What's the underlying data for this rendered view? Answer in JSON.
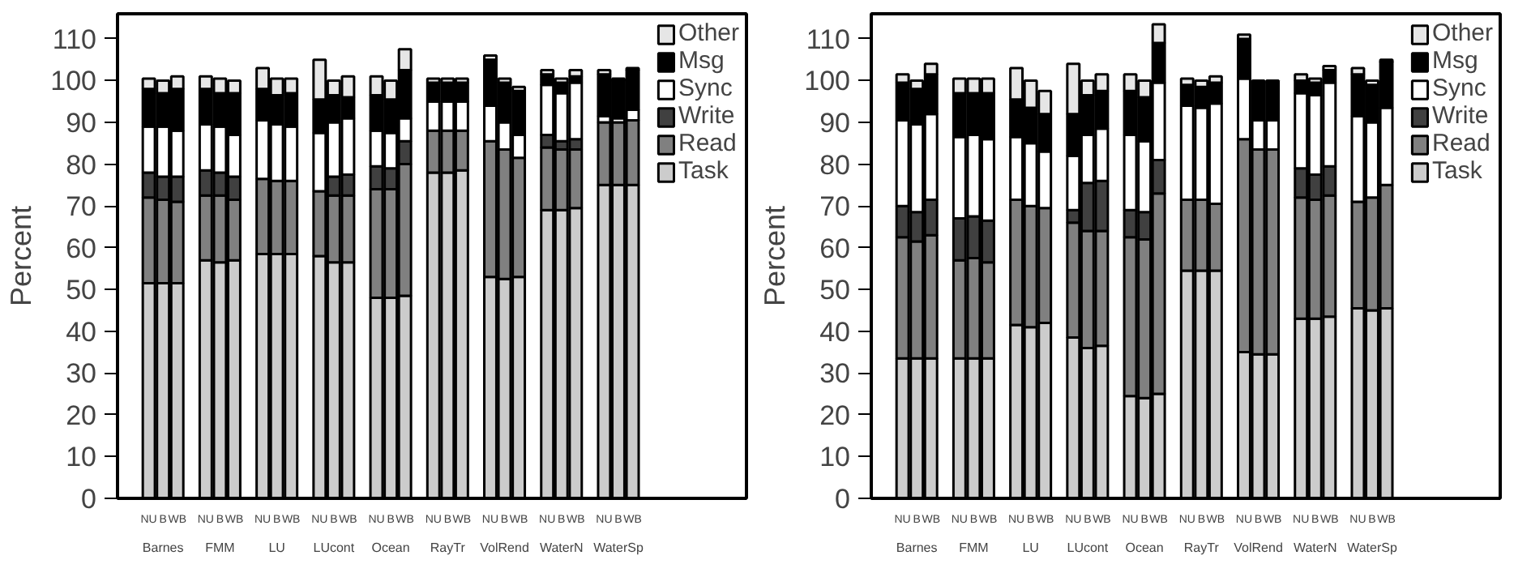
{
  "chart_data": [
    {
      "type": "bar",
      "stacked": true,
      "ylabel": "Percent",
      "ylim": [
        0,
        116
      ],
      "yticks": [
        0,
        10,
        20,
        30,
        40,
        50,
        60,
        70,
        80,
        90,
        100,
        110
      ],
      "grid": false,
      "legend": "top right",
      "categories": [
        "NU",
        "B",
        "WB",
        "NU",
        "B",
        "WB",
        "NU",
        "B",
        "WB",
        "NU",
        "B",
        "WB",
        "NU",
        "B",
        "WB",
        "NU",
        "B",
        "WB",
        "NU",
        "B",
        "WB",
        "NU",
        "B",
        "WB",
        "NU",
        "B",
        "WB"
      ],
      "annotations": [
        "Barnes",
        "FMM",
        "LU",
        "LUcont",
        "Ocean",
        "RayTr",
        "VolRend",
        "WaterN",
        "WaterSp"
      ],
      "series": [
        {
          "name": "Task",
          "color": "#cccccc",
          "values": [
            51.5,
            51.5,
            51.5,
            57,
            56.5,
            57,
            58.5,
            58.5,
            58.5,
            58,
            56.5,
            56.5,
            48,
            48,
            48.5,
            78,
            78,
            78.5,
            53,
            52.5,
            53,
            69,
            69,
            69.5,
            75,
            75,
            75
          ]
        },
        {
          "name": "Read",
          "color": "#808080",
          "values": [
            20.5,
            20,
            19.5,
            15.5,
            16,
            14.5,
            18,
            17.5,
            17.5,
            15.5,
            16,
            16,
            26,
            26,
            31.5,
            10,
            10,
            9.5,
            32.5,
            31,
            28.5,
            15,
            14.5,
            14,
            15,
            15,
            15.5
          ]
        },
        {
          "name": "Write",
          "color": "#404040",
          "values": [
            6,
            5.5,
            6,
            6,
            5.5,
            5.5,
            0,
            0,
            0,
            0,
            4.5,
            5,
            5.5,
            5,
            5.5,
            0,
            0,
            0,
            0,
            0,
            0,
            3,
            2,
            2.5,
            0,
            0,
            0
          ]
        },
        {
          "name": "Sync",
          "color": "#ffffff",
          "values": [
            11,
            12,
            11,
            11,
            11,
            10,
            14,
            13.5,
            13,
            14,
            13,
            13.5,
            8.5,
            8.5,
            5.5,
            7,
            7,
            7,
            8.5,
            6.5,
            5.5,
            12,
            11.5,
            13.5,
            1.5,
            1,
            2.5
          ]
        },
        {
          "name": "Msg",
          "color": "#000000",
          "values": [
            9,
            8,
            10,
            8.5,
            8,
            10,
            7.5,
            7,
            8,
            8,
            6.5,
            5,
            8.5,
            8,
            11.5,
            4.5,
            4.5,
            4.5,
            11,
            9.5,
            10.5,
            2.5,
            2.5,
            1.5,
            10,
            9,
            9.5
          ]
        },
        {
          "name": "Other",
          "color": "#e6e6e6",
          "values": [
            2.5,
            3,
            3,
            3,
            3.5,
            3,
            5,
            4,
            3.5,
            9.5,
            3.5,
            5,
            4.5,
            4.5,
            5,
            1,
            1,
            1,
            1,
            1,
            1,
            1,
            1,
            1.5,
            1,
            0.5,
            0.5
          ]
        }
      ]
    },
    {
      "type": "bar",
      "stacked": true,
      "ylabel": "Percent",
      "ylim": [
        0,
        116
      ],
      "yticks": [
        0,
        10,
        20,
        30,
        40,
        50,
        60,
        70,
        80,
        90,
        100,
        110
      ],
      "grid": false,
      "legend": "top right",
      "categories": [
        "NU",
        "B",
        "WB",
        "NU",
        "B",
        "WB",
        "NU",
        "B",
        "WB",
        "NU",
        "B",
        "WB",
        "NU",
        "B",
        "WB",
        "NU",
        "B",
        "WB",
        "NU",
        "B",
        "WB",
        "NU",
        "B",
        "WB",
        "NU",
        "B",
        "WB"
      ],
      "annotations": [
        "Barnes",
        "FMM",
        "LU",
        "LUcont",
        "Ocean",
        "RayTr",
        "VolRend",
        "WaterN",
        "WaterSp"
      ],
      "series": [
        {
          "name": "Task",
          "color": "#cccccc",
          "values": [
            33.5,
            33.5,
            33.5,
            33.5,
            33.5,
            33.5,
            41.5,
            41,
            42,
            38.5,
            36,
            36.5,
            24.5,
            24,
            25,
            54.5,
            54.5,
            54.5,
            35,
            34.5,
            34.5,
            43,
            43,
            43.5,
            45.5,
            45,
            45.5
          ]
        },
        {
          "name": "Read",
          "color": "#808080",
          "values": [
            29,
            28,
            29.5,
            23.5,
            24,
            23,
            30,
            29,
            27.5,
            27.5,
            28,
            27.5,
            38,
            38,
            48,
            17,
            17,
            16,
            51,
            49,
            49,
            29,
            28.5,
            29,
            25.5,
            27,
            29.5
          ]
        },
        {
          "name": "Write",
          "color": "#404040",
          "values": [
            7.5,
            7,
            8.5,
            10,
            10,
            10,
            0,
            0,
            0,
            3,
            11.5,
            12,
            6.5,
            6.5,
            8,
            0,
            0,
            0,
            0,
            0,
            0,
            7,
            6,
            7,
            0,
            0,
            0
          ]
        },
        {
          "name": "Sync",
          "color": "#ffffff",
          "values": [
            20.5,
            21,
            20.5,
            19.5,
            19.5,
            19.5,
            15,
            15,
            13.5,
            13,
            11.5,
            12.5,
            18,
            17,
            18.5,
            22.5,
            22,
            24,
            14.5,
            7,
            7,
            18,
            19,
            20,
            20.5,
            18,
            18.5
          ]
        },
        {
          "name": "Msg",
          "color": "#000000",
          "values": [
            9,
            8.5,
            9.5,
            10.5,
            10,
            11,
            9,
            8.5,
            9,
            10,
            9.5,
            9,
            10.5,
            10.5,
            9.5,
            5,
            5,
            5,
            9.5,
            9,
            9,
            3,
            3,
            3,
            10,
            9,
            11
          ]
        },
        {
          "name": "Other",
          "color": "#e6e6e6",
          "values": [
            2,
            2,
            2.5,
            3.5,
            3.5,
            3.5,
            7.5,
            6.5,
            5.5,
            12,
            3.5,
            4,
            4,
            4,
            4.5,
            1.5,
            1.5,
            1.5,
            1,
            0.5,
            0.5,
            1.5,
            1,
            1,
            1.5,
            1,
            0.5
          ]
        }
      ]
    }
  ]
}
